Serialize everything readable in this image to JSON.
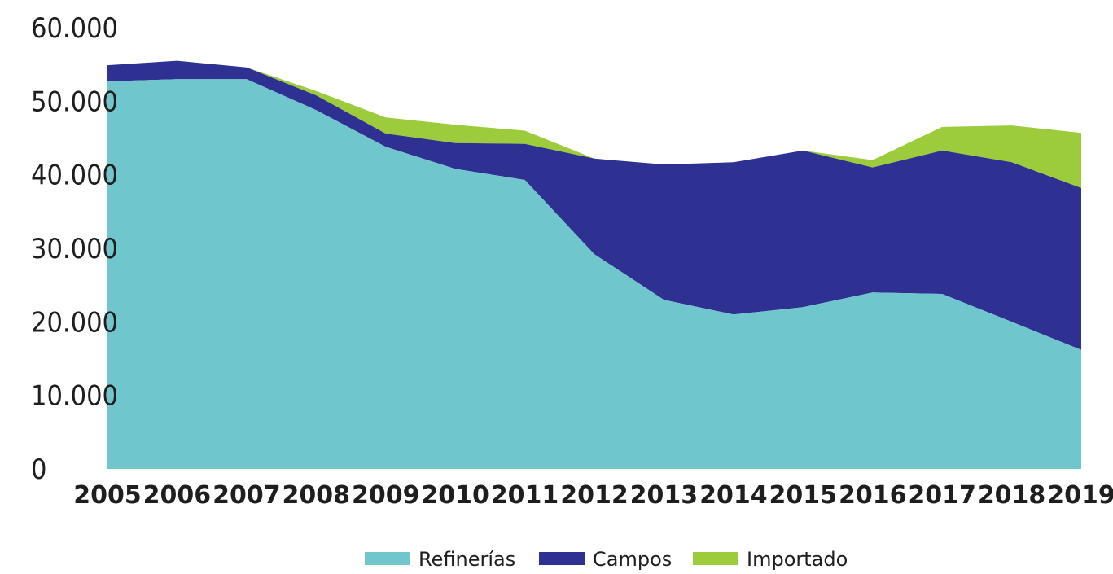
{
  "chart_data": {
    "type": "area",
    "stacked": true,
    "title": "",
    "xlabel": "",
    "ylabel": "",
    "x": [
      "2005",
      "2006",
      "2007",
      "2008",
      "2009",
      "2010",
      "2011",
      "2012",
      "2013",
      "2014",
      "2015",
      "2016",
      "2017",
      "2018",
      "2019"
    ],
    "ylim": [
      0,
      60000
    ],
    "yticks": [
      "0",
      "10.000",
      "20.000",
      "30.000",
      "40.000",
      "50.000",
      "60.000"
    ],
    "yticks_values": [
      0,
      10000,
      20000,
      30000,
      40000,
      50000,
      60000
    ],
    "grid": false,
    "legend_position": "bottom",
    "series": [
      {
        "name": "Refinerías",
        "color": "#6fc6cc",
        "values": [
          52700,
          53000,
          53000,
          48800,
          43800,
          40800,
          39300,
          29200,
          23000,
          21000,
          22000,
          24000,
          23800,
          20000,
          16200
        ]
      },
      {
        "name": "Campos",
        "color": "#2e3192",
        "values": [
          2200,
          2500,
          1600,
          2000,
          1800,
          3500,
          4900,
          13000,
          18400,
          20700,
          21300,
          17000,
          19500,
          21700,
          22000
        ]
      },
      {
        "name": "Importado",
        "color": "#9ccb3b",
        "values": [
          0,
          0,
          0,
          600,
          2200,
          2500,
          1800,
          0,
          0,
          0,
          0,
          1000,
          3200,
          5000,
          7500
        ]
      }
    ]
  }
}
